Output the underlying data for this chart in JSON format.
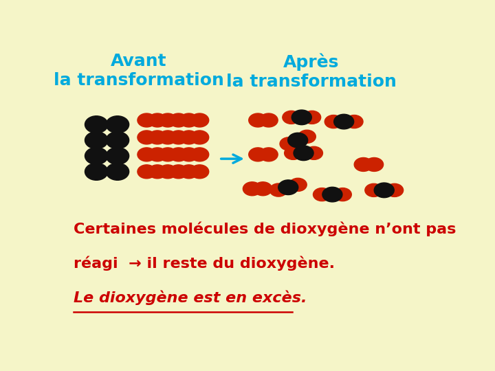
{
  "bg_color": "#f5f5c8",
  "title_avant": "Avant\nla transformation",
  "title_apres": "Après\nla transformation",
  "title_color": "#00aadd",
  "title_fontsize": 18,
  "arrow_color": "#00aadd",
  "red": "#cc2200",
  "black": "#111111",
  "text_color": "#cc0000",
  "text1": "Certaines molécules de dioxygène n’ont pas",
  "text2": "réagi  → il reste du dioxygène.",
  "text3": "Le dioxygène est en excès.",
  "footnote_fontsize": 16
}
